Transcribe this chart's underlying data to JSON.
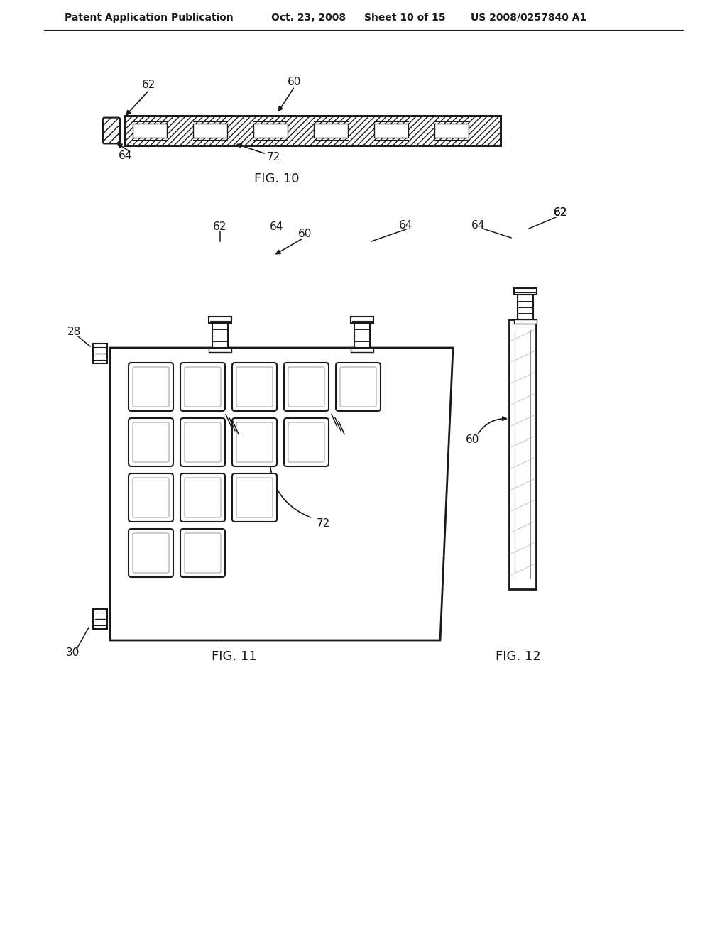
{
  "header_text": "Patent Application Publication",
  "header_date": "Oct. 23, 2008",
  "header_sheet": "Sheet 10 of 15",
  "header_patent": "US 2008/0257840 A1",
  "fig10_label": "FIG. 10",
  "fig11_label": "FIG. 11",
  "fig12_label": "FIG. 12",
  "bg_color": "#ffffff",
  "line_color": "#1a1a1a"
}
